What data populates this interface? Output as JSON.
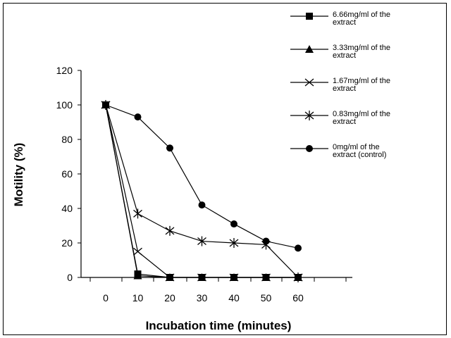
{
  "chart_data": {
    "type": "line",
    "xlabel": "Incubation time (minutes)",
    "ylabel": "Motility (%)",
    "x": [
      0,
      10,
      20,
      30,
      40,
      50,
      60
    ],
    "x_tick_labels": [
      "0",
      "10",
      "20",
      "30",
      "40",
      "50",
      "60"
    ],
    "y_tick_labels": [
      "0",
      "20",
      "40",
      "60",
      "80",
      "100",
      "120"
    ],
    "ylim": [
      0,
      120
    ],
    "grid": false,
    "legend_position": "top-right",
    "series": [
      {
        "name": "6.66mg/ml of the extract",
        "marker": "square",
        "values": [
          100,
          2,
          0,
          0,
          0,
          0,
          0
        ]
      },
      {
        "name": "3.33mg/ml of the extract",
        "marker": "triangle",
        "values": [
          100,
          1,
          0,
          0,
          0,
          0,
          0
        ]
      },
      {
        "name": "1.67mg/ml of the extract",
        "marker": "x",
        "values": [
          100,
          15,
          0,
          0,
          0,
          0,
          0
        ]
      },
      {
        "name": "0.83mg/ml of the extract",
        "marker": "asterisk",
        "values": [
          100,
          37,
          27,
          21,
          20,
          19,
          0
        ]
      },
      {
        "name": "0mg/ml of the extract (control)",
        "marker": "circle",
        "values": [
          100,
          93,
          75,
          42,
          31,
          21,
          17
        ]
      }
    ]
  }
}
